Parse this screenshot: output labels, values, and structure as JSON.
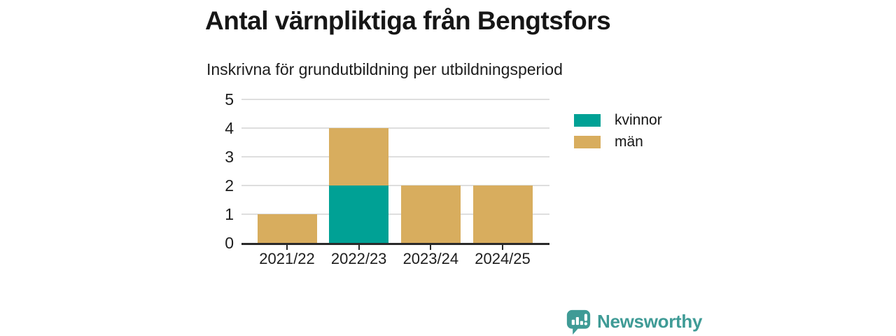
{
  "header": {
    "title": "Antal värnpliktiga från Bengtsfors",
    "subtitle": "Inskrivna för grundutbildning per utbildningsperiod"
  },
  "chart_data": {
    "type": "bar",
    "stacked": true,
    "title": "Antal värnpliktiga från Bengtsfors",
    "subtitle": "Inskrivna för grundutbildning per utbildningsperiod",
    "categories": [
      "2021/22",
      "2022/23",
      "2023/24",
      "2024/25"
    ],
    "series": [
      {
        "name": "kvinnor",
        "color": "#00a195",
        "values": [
          0,
          2,
          0,
          0
        ]
      },
      {
        "name": "män",
        "color": "#d8ad5e",
        "values": [
          1,
          2,
          2,
          2
        ]
      }
    ],
    "totals": [
      1,
      4,
      2,
      2
    ],
    "xlabel": "",
    "ylabel": "",
    "ylim": [
      0,
      5
    ],
    "yticks": [
      0,
      1,
      2,
      3,
      4,
      5
    ],
    "grid": true,
    "legend_position": "right",
    "axis_color": "#2a2a2a",
    "grid_color": "#dedede",
    "background": "#ffffff"
  },
  "footer": {
    "brand": "Newsworthy",
    "brand_color": "#3f9b96",
    "logo_icon": "speech-bubble-bar-chart-icon"
  }
}
